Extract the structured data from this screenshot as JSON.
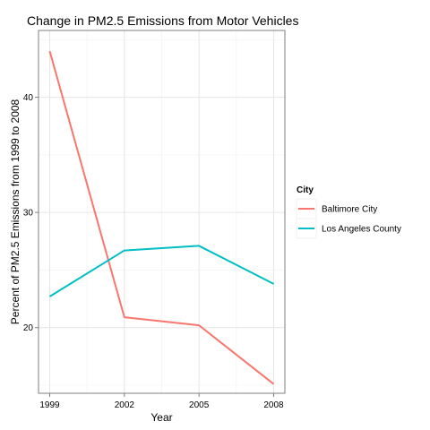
{
  "chart_data": {
    "type": "line",
    "title": "Change in PM2.5 Emissions from Motor Vehicles",
    "xlabel": "Year",
    "ylabel": "Percent of PM2.5 Emissions from 1999 to 2008",
    "x": [
      1999,
      2002,
      2005,
      2008
    ],
    "xticks": [
      "1999",
      "2002",
      "2005",
      "2008"
    ],
    "yticks": [
      20,
      30,
      40
    ],
    "ylim": [
      14.3,
      45.8
    ],
    "grid": true,
    "legend": {
      "title": "City",
      "position": "right"
    },
    "series": [
      {
        "name": "Baltimore City",
        "color": "#F8766D",
        "values": [
          44.0,
          20.9,
          20.2,
          15.1
        ]
      },
      {
        "name": "Los Angeles County",
        "color": "#00BFC4",
        "values": [
          22.7,
          26.7,
          27.1,
          23.8
        ]
      }
    ]
  }
}
